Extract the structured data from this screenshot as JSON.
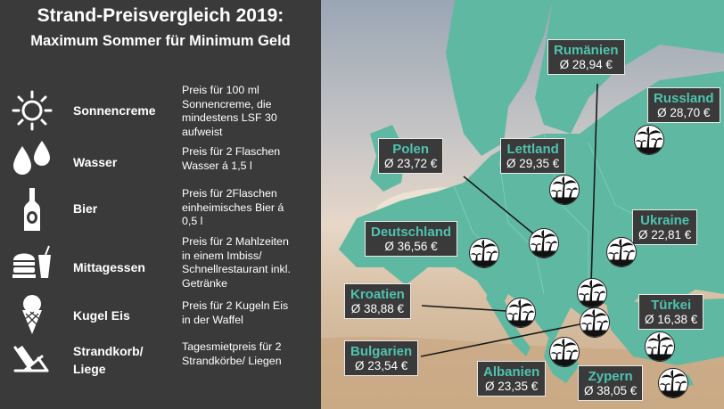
{
  "header": {
    "title": "Strand-Preisvergleich 2019:",
    "subtitle": "Maximum Sommer für Minimum Geld"
  },
  "categories": [
    {
      "name": "Sonnencreme",
      "icon": "sun-icon",
      "desc": [
        "Preis für 100 ml",
        "Sonnencreme, die",
        "mindestens LSF 30",
        "aufweist"
      ]
    },
    {
      "name": "Wasser",
      "icon": "water-drops-icon",
      "desc": [
        "Preis für 2 Flaschen",
        "Wasser á 1,5 l"
      ]
    },
    {
      "name": "Bier",
      "icon": "beer-bottle-icon",
      "desc": [
        "Preis für 2Flaschen",
        "einheimisches Bier á",
        "0,5 l"
      ]
    },
    {
      "name": "Mittagessen",
      "icon": "fast-food-icon",
      "desc": [
        "Preis für 2 Mahlzeiten",
        "in einem Imbiss/",
        "Schnellrestaurant inkl.",
        "Getränke"
      ]
    },
    {
      "name": "Kugel Eis",
      "icon": "ice-cream-icon",
      "desc": [
        "Preis für 2 Kugeln Eis",
        "in der Waffel"
      ]
    },
    {
      "name": "Strandkorb/ Liege",
      "icon": "beach-chair-icon",
      "desc": [
        "Tagesmietpreis für 2",
        "Strandkörbe/ Liegen"
      ]
    }
  ],
  "countries": [
    {
      "name": "Rumänien",
      "price": "Ø 28,94 €"
    },
    {
      "name": "Russland",
      "price": "Ø 28,70 €"
    },
    {
      "name": "Polen",
      "price": "Ø 23,72 €"
    },
    {
      "name": "Lettland",
      "price": "Ø 29,35 €"
    },
    {
      "name": "Deutschland",
      "price": "Ø 36,56 €"
    },
    {
      "name": "Ukraine",
      "price": "Ø 22,81 €"
    },
    {
      "name": "Kroatien",
      "price": "Ø 38,88 €"
    },
    {
      "name": "Türkei",
      "price": "Ø 16,38 €"
    },
    {
      "name": "Bulgarien",
      "price": "Ø 23,54 €"
    },
    {
      "name": "Albanien",
      "price": "Ø 23,35 €"
    },
    {
      "name": "Zypern",
      "price": "Ø 38,05 €"
    }
  ],
  "colors": {
    "panel": "#3a3a3a",
    "accent": "#4fc3b0",
    "land": "#5fb9a2",
    "text": "#ffffff"
  }
}
